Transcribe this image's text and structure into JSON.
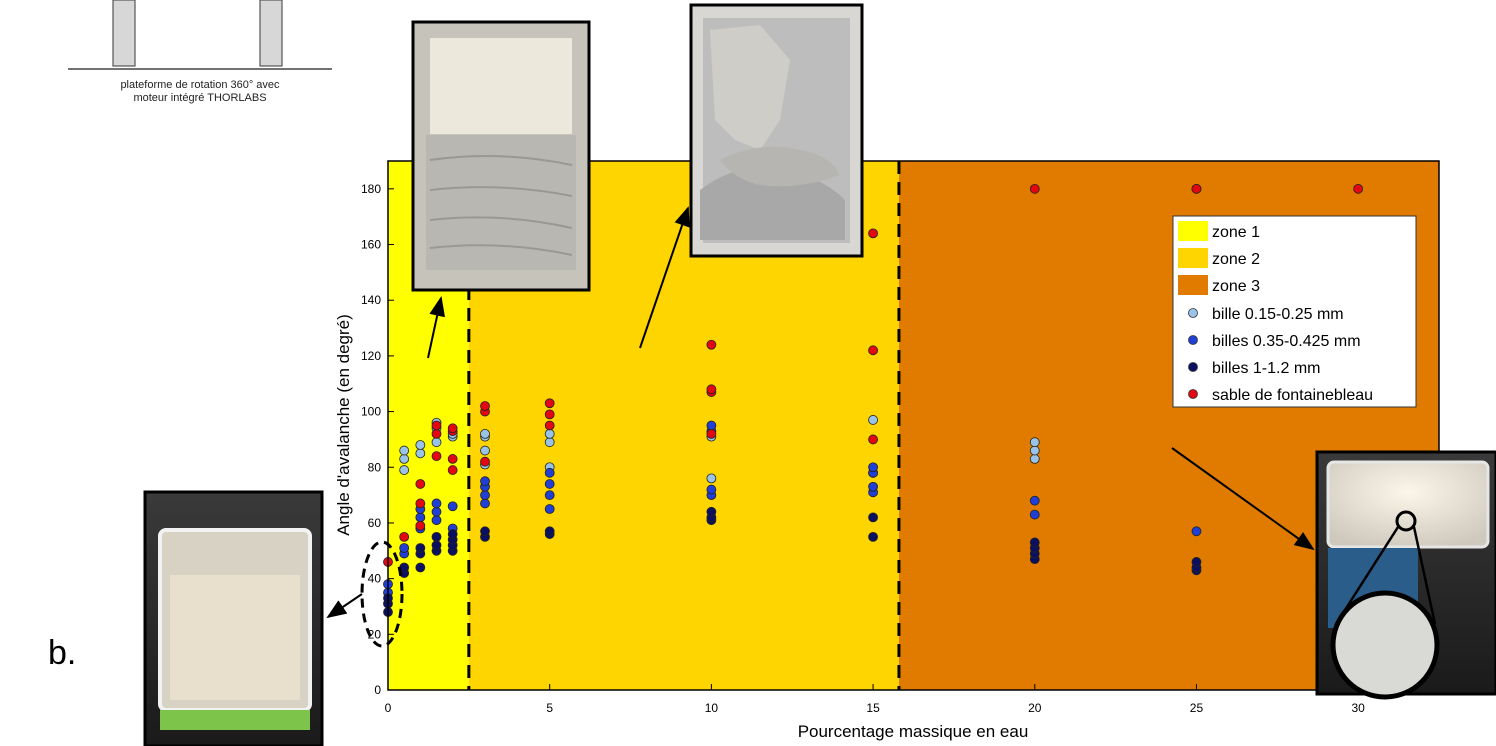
{
  "caption": {
    "line1": "plateforme de rotation 360° avec",
    "line2": "moteur intégré THORLABS"
  },
  "panel_letter": "b.",
  "colors": {
    "zone1": "#ffff00",
    "zone2": "#ffd500",
    "zone3": "#e07b00",
    "bille_015": "#99c4e8",
    "billes_035": "#1f3fd6",
    "billes_1": "#0b1160",
    "sable": "#e30613"
  },
  "chart_data": {
    "type": "scatter",
    "title": "",
    "xlabel": "Pourcentage massique en eau",
    "ylabel": "Angle d'avalanche (en degré)",
    "xlim": [
      0,
      32.5
    ],
    "ylim": [
      0,
      190
    ],
    "xticks": [
      0,
      5,
      10,
      15,
      20,
      25,
      30
    ],
    "yticks": [
      0,
      20,
      40,
      60,
      80,
      100,
      120,
      140,
      160,
      180
    ],
    "grid": false,
    "legend_position": "top-right",
    "zones": [
      {
        "name": "zone 1",
        "x_start": 0,
        "x_end": 2.5
      },
      {
        "name": "zone 2",
        "x_start": 2.5,
        "x_end": 15.8
      },
      {
        "name": "zone 3",
        "x_start": 15.8,
        "x_end": 32.5
      }
    ],
    "series": [
      {
        "name": "bille 0.15-0.25 mm",
        "points": [
          [
            0.5,
            79
          ],
          [
            0.5,
            83
          ],
          [
            0.5,
            86
          ],
          [
            1,
            85
          ],
          [
            1,
            88
          ],
          [
            1.5,
            89
          ],
          [
            1.5,
            94
          ],
          [
            1.5,
            96
          ],
          [
            2,
            91
          ],
          [
            2,
            92
          ],
          [
            3,
            81
          ],
          [
            3,
            86
          ],
          [
            3,
            91
          ],
          [
            3,
            92
          ],
          [
            5,
            80
          ],
          [
            5,
            89
          ],
          [
            5,
            92
          ],
          [
            10,
            76
          ],
          [
            10,
            91
          ],
          [
            15,
            78
          ],
          [
            15,
            97
          ],
          [
            20,
            83
          ],
          [
            20,
            86
          ],
          [
            20,
            89
          ],
          [
            25,
            180
          ]
        ]
      },
      {
        "name": "billes 0.35-0.425 mm",
        "points": [
          [
            0,
            35
          ],
          [
            0,
            38
          ],
          [
            0.5,
            49
          ],
          [
            0.5,
            51
          ],
          [
            1,
            58
          ],
          [
            1,
            62
          ],
          [
            1,
            65
          ],
          [
            1.5,
            61
          ],
          [
            1.5,
            64
          ],
          [
            1.5,
            67
          ],
          [
            2,
            58
          ],
          [
            2,
            66
          ],
          [
            3,
            67
          ],
          [
            3,
            70
          ],
          [
            3,
            73
          ],
          [
            3,
            75
          ],
          [
            5,
            65
          ],
          [
            5,
            70
          ],
          [
            5,
            74
          ],
          [
            5,
            78
          ],
          [
            10,
            70
          ],
          [
            10,
            72
          ],
          [
            10,
            93
          ],
          [
            10,
            95
          ],
          [
            15,
            71
          ],
          [
            15,
            73
          ],
          [
            15,
            78
          ],
          [
            15,
            80
          ],
          [
            20,
            63
          ],
          [
            20,
            68
          ],
          [
            25,
            57
          ]
        ]
      },
      {
        "name": "billes 1-1.2 mm",
        "points": [
          [
            0,
            28
          ],
          [
            0,
            31
          ],
          [
            0,
            33
          ],
          [
            0.5,
            42
          ],
          [
            0.5,
            44
          ],
          [
            1,
            44
          ],
          [
            1,
            49
          ],
          [
            1,
            51
          ],
          [
            1.5,
            50
          ],
          [
            1.5,
            52
          ],
          [
            1.5,
            55
          ],
          [
            2,
            50
          ],
          [
            2,
            52
          ],
          [
            2,
            54
          ],
          [
            2,
            56
          ],
          [
            3,
            55
          ],
          [
            3,
            57
          ],
          [
            5,
            56
          ],
          [
            5,
            57
          ],
          [
            10,
            61
          ],
          [
            10,
            62
          ],
          [
            10,
            64
          ],
          [
            15,
            55
          ],
          [
            15,
            62
          ],
          [
            20,
            47
          ],
          [
            20,
            49
          ],
          [
            20,
            51
          ],
          [
            20,
            53
          ],
          [
            25,
            43
          ],
          [
            25,
            44
          ],
          [
            25,
            46
          ]
        ]
      },
      {
        "name": "sable de fontainebleau",
        "points": [
          [
            0,
            46
          ],
          [
            0.5,
            55
          ],
          [
            1,
            59
          ],
          [
            1,
            67
          ],
          [
            1,
            74
          ],
          [
            1.5,
            84
          ],
          [
            1.5,
            92
          ],
          [
            1.5,
            95
          ],
          [
            2,
            79
          ],
          [
            2,
            83
          ],
          [
            2,
            93
          ],
          [
            2,
            94
          ],
          [
            3,
            82
          ],
          [
            3,
            100
          ],
          [
            3,
            102
          ],
          [
            5,
            95
          ],
          [
            5,
            99
          ],
          [
            5,
            103
          ],
          [
            10,
            92
          ],
          [
            10,
            107
          ],
          [
            10,
            108
          ],
          [
            10,
            124
          ],
          [
            15,
            90
          ],
          [
            15,
            122
          ],
          [
            15,
            164
          ],
          [
            20,
            180
          ],
          [
            25,
            180
          ],
          [
            30,
            180
          ]
        ]
      }
    ]
  }
}
